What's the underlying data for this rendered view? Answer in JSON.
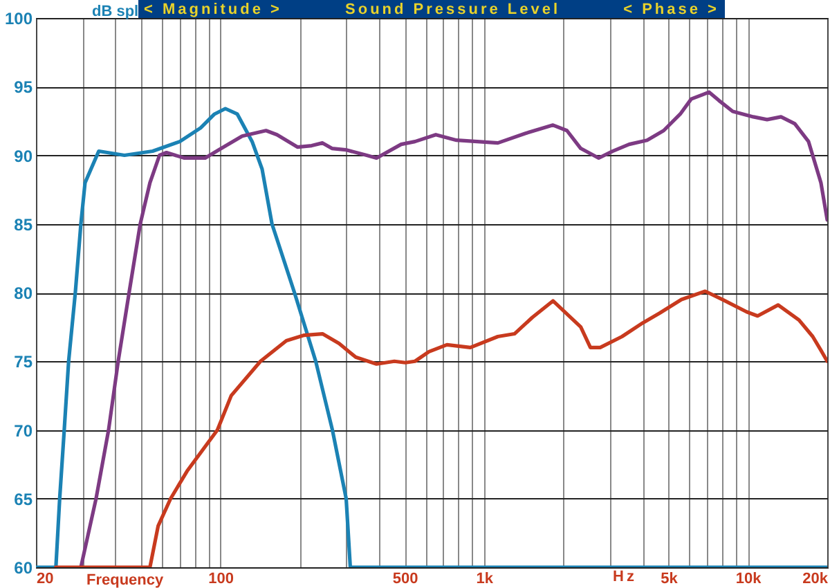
{
  "chart_data": {
    "type": "line",
    "title": "Sound Pressure Level",
    "annotations": [
      "< Magnitude >",
      "< Phase >",
      "Hz"
    ],
    "xlabel": "Frequency",
    "ylabel": "dB spl",
    "log": "x",
    "grid": true,
    "xlim": [
      20,
      20000
    ],
    "ylim": [
      60,
      100
    ],
    "yticks": [
      60,
      65,
      70,
      75,
      80,
      85,
      90,
      95,
      100
    ],
    "xticks": [
      20,
      {
        "value": 30,
        "label": null
      },
      {
        "value": 40,
        "label": null
      },
      {
        "value": 50,
        "label": null
      },
      {
        "value": 60,
        "label": null
      },
      {
        "value": 70,
        "label": null
      },
      {
        "value": 80,
        "label": null
      },
      {
        "value": 90,
        "label": null
      },
      100,
      {
        "value": 200,
        "label": null
      },
      {
        "value": 300,
        "label": null
      },
      {
        "value": 400,
        "label": null
      },
      500,
      {
        "value": 600,
        "label": null
      },
      {
        "value": 700,
        "label": null
      },
      {
        "value": 800,
        "label": null
      },
      {
        "value": 900,
        "label": null
      },
      {
        "value": 1000,
        "label": "1k"
      },
      {
        "value": 2000,
        "label": null
      },
      {
        "value": 3000,
        "label": null
      },
      {
        "value": 4000,
        "label": null
      },
      {
        "value": 5000,
        "label": "5k"
      },
      {
        "value": 6000,
        "label": null
      },
      {
        "value": 7000,
        "label": null
      },
      {
        "value": 8000,
        "label": null
      },
      {
        "value": 9000,
        "label": null
      },
      {
        "value": 10000,
        "label": "10k"
      },
      {
        "value": 20000,
        "label": "20k"
      }
    ],
    "series": [
      {
        "color": "#1b82b4",
        "x": [
          20,
          23.8,
          24.6,
          25.6,
          26.6,
          28.2,
          29.6,
          30.7,
          34.6,
          43.3,
          55.4,
          70.2,
          84.2,
          95,
          104.5,
          116,
          132,
          144,
          157,
          191,
          230,
          266,
          300,
          311,
          20000
        ],
        "values": [
          60,
          60,
          65,
          70,
          75,
          80,
          85,
          88,
          90.3,
          90,
          90.3,
          91,
          92,
          93,
          93.4,
          93,
          91,
          89,
          85,
          80,
          75,
          70,
          65,
          60,
          60
        ]
      },
      {
        "color": "#7d3a83",
        "x": [
          29.6,
          33.8,
          37.7,
          41,
          45.1,
          49.7,
          54.1,
          58.8,
          62.5,
          73.1,
          87.6,
          98.8,
          121,
          149,
          164,
          196,
          222,
          244,
          265,
          299,
          359,
          391,
          485,
          547,
          656,
          786,
          942,
          1128,
          1436,
          1825,
          2061,
          2325,
          2720,
          3070,
          3548,
          4150,
          4797,
          5540,
          6100,
          7130,
          7760,
          8760,
          10490,
          11830,
          13360,
          15070,
          16990,
          18930,
          20000
        ],
        "values": [
          60,
          65,
          70,
          75,
          80,
          85,
          88,
          90,
          90.2,
          89.8,
          89.8,
          90.4,
          91.4,
          91.8,
          91.5,
          90.6,
          90.7,
          90.9,
          90.5,
          90.4,
          90,
          89.8,
          90.8,
          91,
          91.5,
          91.1,
          91,
          90.9,
          91.6,
          92.2,
          91.8,
          90.5,
          89.8,
          90.3,
          90.8,
          91.1,
          91.8,
          93,
          94.1,
          94.6,
          94,
          93.2,
          92.8,
          92.6,
          92.8,
          92.3,
          91,
          88,
          85.3
        ]
      },
      {
        "color": "#c83a1e",
        "x": [
          23.8,
          54.1,
          58.1,
          64.8,
          74.8,
          97.5,
          110,
          142,
          178,
          208,
          244,
          282,
          326,
          391,
          457,
          503,
          547,
          618,
          723,
          887,
          1128,
          1304,
          1525,
          1825,
          2325,
          2530,
          2755,
          3335,
          4000,
          4625,
          5600,
          6890,
          8000,
          9890,
          10890,
          13030,
          15630,
          17620,
          18930,
          20000
        ],
        "values": [
          60,
          60,
          63,
          65,
          67,
          70,
          72.5,
          75,
          76.5,
          76.9,
          77,
          76.3,
          75.3,
          74.8,
          75,
          74.9,
          75,
          75.7,
          76.2,
          76,
          76.8,
          77,
          78.2,
          79.4,
          77.5,
          76,
          76,
          76.8,
          77.8,
          78.5,
          79.5,
          80.1,
          79.5,
          78.6,
          78.3,
          79.1,
          78,
          76.8,
          75.8,
          75
        ]
      }
    ]
  }
}
